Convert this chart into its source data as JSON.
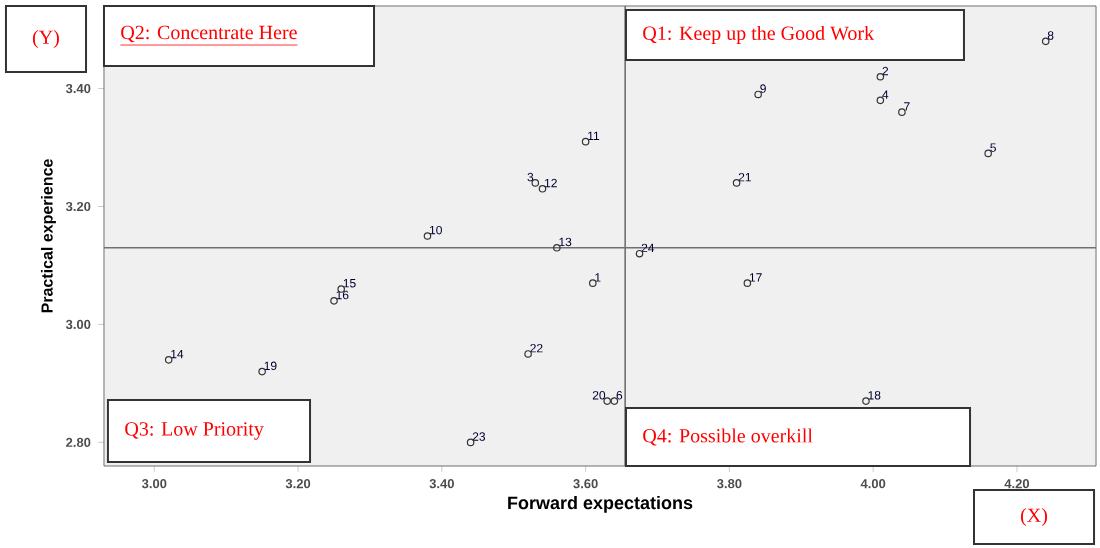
{
  "chart_data": {
    "type": "scatter",
    "xlabel": "Forward expectations",
    "ylabel": "Practical experience",
    "x": [
      3.61,
      4.01,
      3.53,
      4.01,
      4.16,
      3.64,
      4.04,
      4.24,
      3.84,
      3.38,
      3.6,
      3.54,
      3.56,
      3.02,
      3.26,
      3.25,
      3.825,
      3.99,
      3.15,
      3.63,
      3.81,
      3.52,
      3.44,
      3.675
    ],
    "values": [
      3.07,
      3.42,
      3.24,
      3.38,
      3.29,
      2.87,
      3.36,
      3.48,
      3.39,
      3.15,
      3.31,
      3.23,
      3.13,
      2.94,
      3.06,
      3.04,
      3.07,
      2.87,
      2.92,
      2.87,
      3.24,
      2.95,
      2.8,
      3.12
    ],
    "color": "#333333",
    "marker": "circle",
    "xlim": [
      2.93,
      4.31
    ],
    "ylim": [
      2.76,
      3.54
    ],
    "xticks": [
      {
        "value": 3.0,
        "label": "3.00"
      },
      {
        "value": 3.2,
        "label": "3.20"
      },
      {
        "value": 3.4,
        "label": "3.40"
      },
      {
        "value": 3.6,
        "label": "3.60"
      },
      {
        "value": 3.8,
        "label": "3.80"
      },
      {
        "value": 4.0,
        "label": "4.00"
      },
      {
        "value": 4.2,
        "label": "4.20"
      }
    ],
    "yticks": [
      {
        "value": 2.8,
        "label": "2.80"
      },
      {
        "value": 3.0,
        "label": "3.00"
      },
      {
        "value": 3.2,
        "label": "3.20"
      },
      {
        "value": 3.4,
        "label": "3.40"
      }
    ],
    "ref_lines": [
      {
        "axis": "x",
        "value": 3.655,
        "color": "#707070"
      },
      {
        "axis": "y",
        "value": 3.13,
        "color": "#707070"
      }
    ],
    "annotations": [
      "Q2: Concentrate Here",
      "Q1: Keep up the Good Work",
      "Q3: Low Priority",
      "Q4: Possible overkill",
      "(Y)",
      "(X)",
      {
        "text": "1",
        "x": 3.61,
        "y": 3.07
      },
      {
        "text": "2",
        "x": 4.01,
        "y": 3.42
      },
      {
        "text": "3",
        "x": 3.53,
        "y": 3.24
      },
      {
        "text": "4",
        "x": 4.01,
        "y": 3.38
      },
      {
        "text": "5",
        "x": 4.16,
        "y": 3.29
      },
      {
        "text": "6",
        "x": 3.64,
        "y": 2.87
      },
      {
        "text": "7",
        "x": 4.04,
        "y": 3.36
      },
      {
        "text": "8",
        "x": 4.24,
        "y": 3.48
      },
      {
        "text": "9",
        "x": 3.84,
        "y": 3.39
      },
      {
        "text": "10",
        "x": 3.38,
        "y": 3.15
      },
      {
        "text": "11",
        "x": 3.6,
        "y": 3.31
      },
      {
        "text": "12",
        "x": 3.54,
        "y": 3.23
      },
      {
        "text": "13",
        "x": 3.56,
        "y": 3.13
      },
      {
        "text": "14",
        "x": 3.02,
        "y": 2.94
      },
      {
        "text": "15",
        "x": 3.26,
        "y": 3.06
      },
      {
        "text": "16",
        "x": 3.25,
        "y": 3.04
      },
      {
        "text": "17",
        "x": 3.825,
        "y": 3.07
      },
      {
        "text": "18",
        "x": 3.99,
        "y": 2.87
      },
      {
        "text": "19",
        "x": 3.15,
        "y": 2.92
      },
      {
        "text": "20",
        "x": 3.63,
        "y": 2.87
      },
      {
        "text": "21",
        "x": 3.81,
        "y": 3.24
      },
      {
        "text": "22",
        "x": 3.52,
        "y": 2.95
      },
      {
        "text": "23",
        "x": 3.44,
        "y": 2.8
      },
      {
        "text": "24",
        "x": 3.675,
        "y": 3.12
      }
    ]
  }
}
